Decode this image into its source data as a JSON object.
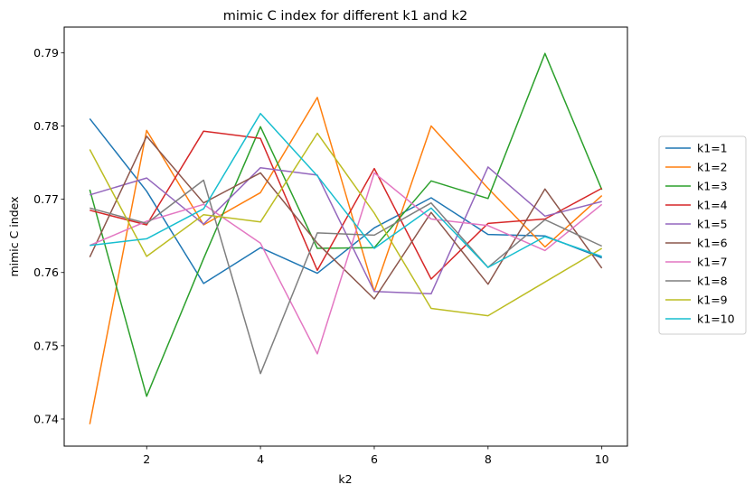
{
  "chart_data": {
    "type": "line",
    "title": "mimic C index for different k1 and k2",
    "xlabel": "k2",
    "ylabel": "mimic C index",
    "xlim": [
      0.55,
      10.45
    ],
    "ylim": [
      0.7363,
      0.7935
    ],
    "xticks": [
      2,
      4,
      6,
      8,
      10
    ],
    "yticks": [
      0.74,
      0.75,
      0.76,
      0.77,
      0.78,
      0.79
    ],
    "ytick_labels": [
      "0.74",
      "0.75",
      "0.76",
      "0.77",
      "0.78",
      "0.79"
    ],
    "grid": false,
    "legend_position": "right",
    "x": [
      1,
      2,
      3,
      4,
      5,
      6,
      7,
      8,
      9,
      10
    ],
    "series": [
      {
        "name": "k1=1",
        "color": "#1f77b4",
        "values": [
          0.781,
          0.7711,
          0.7585,
          0.7634,
          0.7599,
          0.7661,
          0.7702,
          0.7652,
          0.765,
          0.762
        ]
      },
      {
        "name": "k1=2",
        "color": "#ff7f0e",
        "values": [
          0.7393,
          0.7794,
          0.7665,
          0.7709,
          0.7839,
          0.7574,
          0.78,
          0.7715,
          0.7635,
          0.7705
        ]
      },
      {
        "name": "k1=3",
        "color": "#2ca02c",
        "values": [
          0.7713,
          0.7431,
          0.7619,
          0.7799,
          0.7633,
          0.7634,
          0.7725,
          0.7701,
          0.7899,
          0.7713
        ]
      },
      {
        "name": "k1=4",
        "color": "#d62728",
        "values": [
          0.7685,
          0.7665,
          0.7793,
          0.7783,
          0.7603,
          0.7742,
          0.7591,
          0.7667,
          0.7673,
          0.7715
        ]
      },
      {
        "name": "k1=5",
        "color": "#9467bd",
        "values": [
          0.7706,
          0.7729,
          0.7666,
          0.7743,
          0.7733,
          0.7574,
          0.7571,
          0.7744,
          0.7677,
          0.7697
        ]
      },
      {
        "name": "k1=6",
        "color": "#8c564b",
        "values": [
          0.7621,
          0.7786,
          0.7695,
          0.7736,
          0.764,
          0.7564,
          0.7682,
          0.7584,
          0.7714,
          0.7606
        ]
      },
      {
        "name": "k1=7",
        "color": "#e377c2",
        "values": [
          0.7637,
          0.767,
          0.7693,
          0.764,
          0.7489,
          0.7736,
          0.7673,
          0.7664,
          0.763,
          0.7693
        ]
      },
      {
        "name": "k1=8",
        "color": "#7f7f7f",
        "values": [
          0.7688,
          0.7667,
          0.7726,
          0.7462,
          0.7654,
          0.7651,
          0.7695,
          0.7607,
          0.7672,
          0.7636
        ]
      },
      {
        "name": "k1=9",
        "color": "#bcbd22",
        "values": [
          0.7768,
          0.7622,
          0.7679,
          0.7669,
          0.779,
          0.7681,
          0.7551,
          0.7541,
          0.7587,
          0.7633
        ]
      },
      {
        "name": "k1=10",
        "color": "#17becf",
        "values": [
          0.7637,
          0.7646,
          0.7687,
          0.7817,
          0.7732,
          0.7633,
          0.7688,
          0.7607,
          0.7649,
          0.7622
        ]
      }
    ]
  }
}
